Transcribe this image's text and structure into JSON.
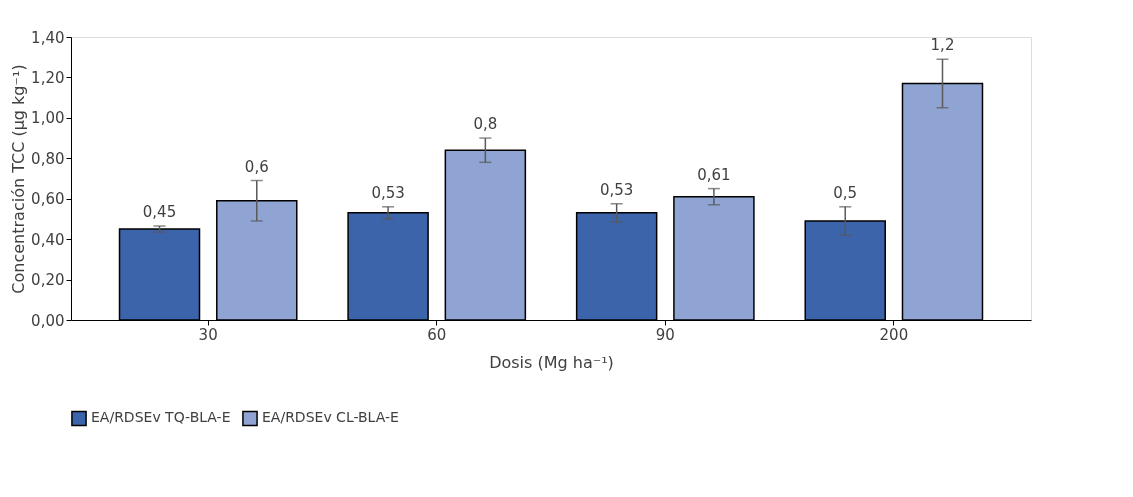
{
  "chart_data": {
    "type": "bar",
    "xlabel": "Dosis (Mg ha⁻¹)",
    "ylabel": "Concentración TCC (µg kg⁻¹)",
    "categories": [
      "30",
      "60",
      "90",
      "200"
    ],
    "series": [
      {
        "name": "EA/RDSEv TQ-BLA-E",
        "color": "#3c64aa",
        "values": [
          0.45,
          0.53,
          0.53,
          0.49
        ],
        "errors": [
          0.015,
          0.03,
          0.045,
          0.07
        ],
        "value_labels": [
          "0,45",
          "0,53",
          "0,53",
          "0,5"
        ]
      },
      {
        "name": "EA/RDSEv CL-BLA-E",
        "color": "#8fa4d3",
        "values": [
          0.59,
          0.84,
          0.61,
          1.17
        ],
        "errors": [
          0.1,
          0.06,
          0.04,
          0.12
        ],
        "value_labels": [
          "0,6",
          "0,8",
          "0,61",
          "1,2"
        ]
      }
    ],
    "ylim": [
      0,
      1.4
    ],
    "yticks": [
      {
        "value": 0,
        "label": "0,00"
      },
      {
        "value": 0.2,
        "label": "0,20"
      },
      {
        "value": 0.4,
        "label": "0,40"
      },
      {
        "value": 0.6,
        "label": "0,60"
      },
      {
        "value": 0.8,
        "label": "0,80"
      },
      {
        "value": 1.0,
        "label": "1,00"
      },
      {
        "value": 1.2,
        "label": "1,20"
      },
      {
        "value": 1.4,
        "label": "1,40"
      }
    ],
    "grid": false,
    "legend": "bottom"
  }
}
